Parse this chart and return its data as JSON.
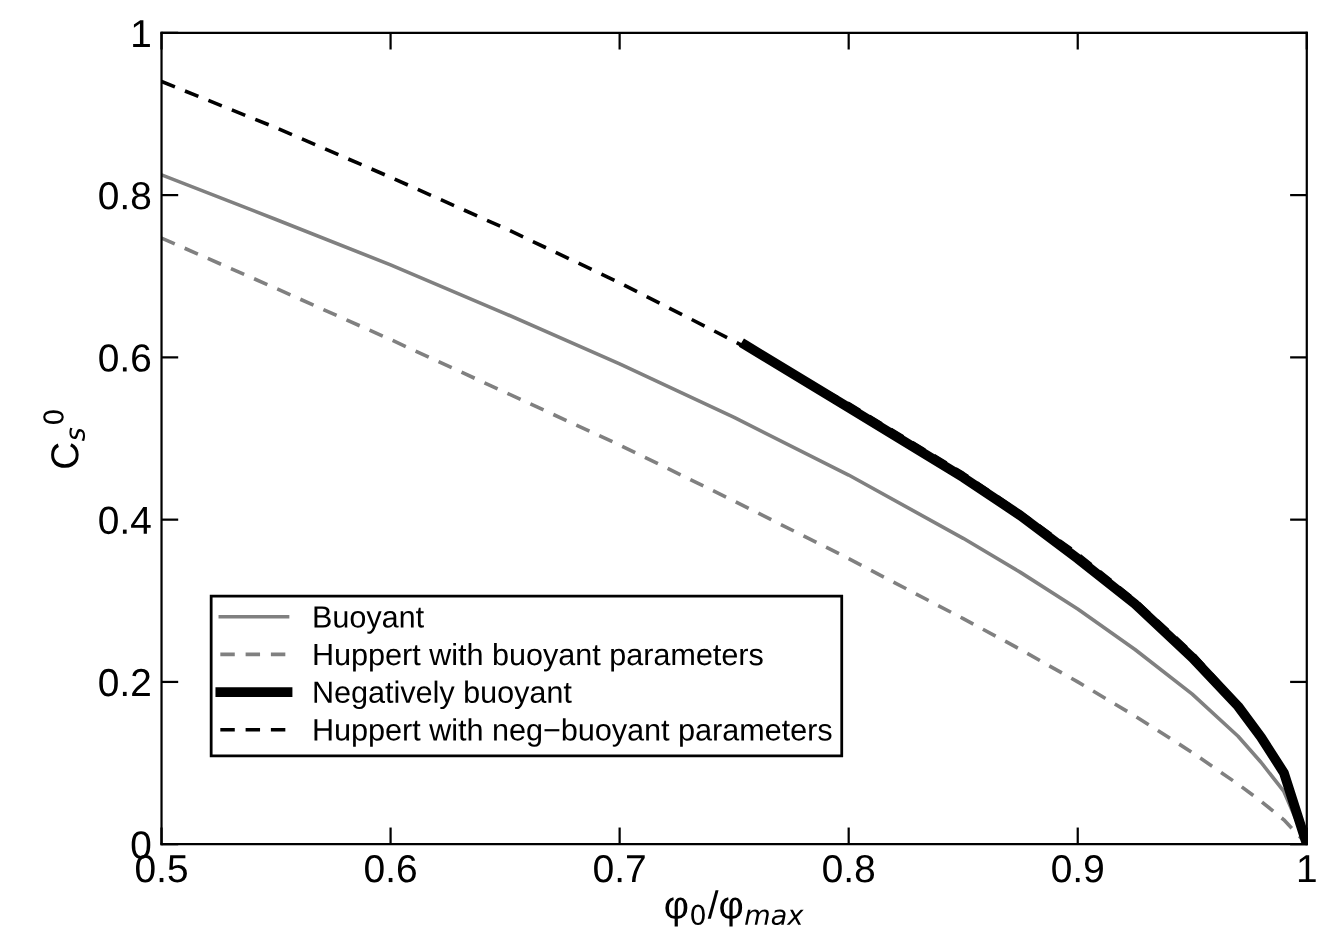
{
  "chart_data": {
    "type": "line",
    "xlabel": "φ$_{0}$/φ$_{max}$",
    "ylabel": "C$_{s}$$^{0}$",
    "xlim": [
      0.5,
      1
    ],
    "ylim": [
      0,
      1
    ],
    "xticks": [
      0.5,
      0.6,
      0.7,
      0.8,
      0.9,
      1
    ],
    "yticks": [
      0,
      0.2,
      0.4,
      0.6,
      0.8,
      1
    ],
    "grid": false,
    "legend": "bottom left",
    "marker": "none",
    "series": [
      {
        "name": "Buoyant",
        "color": "#808080",
        "line_style": "solid",
        "x": [
          0.5,
          0.55,
          0.6,
          0.65,
          0.7,
          0.75,
          0.8,
          0.85,
          0.875,
          0.9,
          0.925,
          0.95,
          0.97,
          0.98,
          0.99,
          1
        ],
        "values": [
          0.825,
          0.77,
          0.714,
          0.654,
          0.592,
          0.526,
          0.455,
          0.377,
          0.335,
          0.29,
          0.24,
          0.185,
          0.133,
          0.101,
          0.065,
          0
        ]
      },
      {
        "name": "Huppert with buoyant parameters",
        "color": "#808080",
        "line_style": "dashed",
        "x": [
          0.5,
          0.55,
          0.6,
          0.65,
          0.7,
          0.75,
          0.8,
          0.85,
          0.875,
          0.9,
          0.925,
          0.95,
          0.97,
          0.98,
          0.99,
          1
        ],
        "values": [
          0.747,
          0.685,
          0.622,
          0.557,
          0.492,
          0.423,
          0.352,
          0.278,
          0.24,
          0.2,
          0.158,
          0.113,
          0.074,
          0.053,
          0.03,
          0
        ]
      },
      {
        "name": "Negatively buoyant",
        "color": "#000000",
        "line_style": "solid",
        "x": [
          0.755,
          0.8,
          0.85,
          0.875,
          0.9,
          0.925,
          0.95,
          0.97,
          0.98,
          0.99,
          1
        ],
        "values": [
          0.615,
          0.538,
          0.452,
          0.405,
          0.352,
          0.296,
          0.23,
          0.17,
          0.132,
          0.088,
          0
        ]
      },
      {
        "name": "Huppert with neg−buoyant parameters",
        "color": "#000000",
        "line_style": "dashed",
        "x": [
          0.5,
          0.55,
          0.6,
          0.65,
          0.7,
          0.75,
          0.8,
          0.85,
          0.875,
          0.9,
          0.925,
          0.95,
          0.97,
          0.98,
          0.99,
          1
        ],
        "values": [
          0.94,
          0.883,
          0.822,
          0.759,
          0.692,
          0.62,
          0.543,
          0.457,
          0.409,
          0.358,
          0.301,
          0.236,
          0.174,
          0.137,
          0.09,
          0
        ]
      }
    ]
  }
}
